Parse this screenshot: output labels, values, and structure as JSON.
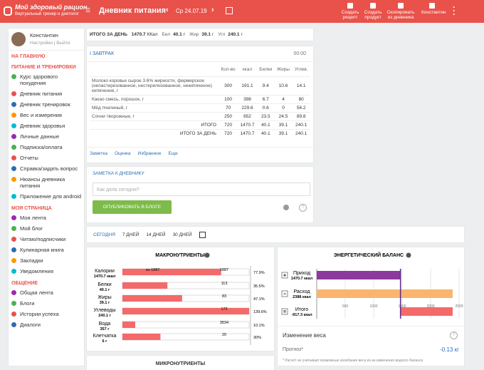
{
  "header": {
    "logo_title": "Мой здоровый рацион",
    "logo_subtitle": "Виртуальный тренер и диетолог",
    "page_title": "Дневник питания",
    "date": "Ср 24.07.19",
    "actions": [
      "Создать рецепт",
      "Создать продукт",
      "Скопировать из дневника",
      "Константин"
    ]
  },
  "sidebar": {
    "user": "Константин",
    "links": [
      "Настройки",
      "Выйти"
    ],
    "sections": [
      {
        "title": "НА ГЛАВНУЮ",
        "items": []
      },
      {
        "title": "ПИТАНИЕ И ТРЕНИРОВКИ",
        "items": [
          "Курс здорового похудения",
          "Дневник питания",
          "Дневник тренировок",
          "Вес и измерения",
          "Дневник здоровья",
          "Личные данные",
          "Подписка/оплата",
          "Отчеты",
          "Справка/задать вопрос",
          "Нюансы дневника питания",
          "Приложение для android"
        ]
      },
      {
        "title": "МОЯ СТРАНИЦА",
        "items": [
          "Моя лента",
          "Мой блог",
          "Читаю/подписчики",
          "Кулинарная книга",
          "Закладки",
          "Уведомления"
        ]
      },
      {
        "title": "ОБЩЕНИЕ",
        "items": [
          "Общая лента",
          "Блоги",
          "Истории успеха",
          "Диалоги"
        ]
      }
    ]
  },
  "summary": {
    "label": "ИТОГО ЗА ДЕНЬ",
    "items": [
      {
        "value": 1470.7,
        "unit": "ККал"
      },
      {
        "name": "Бел",
        "value": 40.1,
        "unit": "г"
      },
      {
        "name": "Жир",
        "value": 39.1,
        "unit": "г"
      },
      {
        "name": "Угл",
        "value": 240.1,
        "unit": "г"
      }
    ]
  },
  "meal": {
    "title": "ЗАВТРАК",
    "time": "00:00",
    "columns": [
      "Кол-во",
      "ккал",
      "Белки",
      "Жиры",
      "Углев."
    ],
    "rows": [
      [
        "Молоко коровье сырое 3.6% жирности, фермерское (непастеризованное, нестерилизованное, некипяченое) кипячение, г",
        300,
        191.1,
        9.4,
        10.6,
        14.1
      ],
      [
        "Какао смесь, порошок, г",
        100,
        398,
        6.7,
        4,
        80
      ],
      [
        "Мёд пчелиный, г",
        70,
        229.6,
        0.6,
        0,
        56.2
      ],
      [
        "Сочни творожные, г",
        250,
        652,
        23.5,
        24.5,
        89.8
      ]
    ],
    "totals": [
      [
        "ИТОГО",
        720,
        1470.7,
        40.1,
        39.1,
        240.1
      ],
      [
        "ИТОГО ЗА ДЕНЬ",
        720,
        1470.7,
        40.1,
        39.1,
        240.1
      ]
    ],
    "links": [
      "Заметка",
      "Оценка",
      "Избранное",
      "Еще"
    ]
  },
  "note": {
    "title": "ЗАМЕТКА К ДНЕВНИКУ",
    "placeholder": "Как дела сегодня?",
    "button": "ОПУБЛИКОВАТЬ В БЛОГЕ"
  },
  "tabs": [
    "СЕГОДНЯ",
    "7 ДНЕЙ",
    "14 ДНЕЙ",
    "30 ДНЕЙ"
  ],
  "macros": {
    "title": "МАКРОНУТРИЕНТЫ",
    "rows": [
      {
        "name": "Калории",
        "amount": "1470.7 ккал",
        "note": "из 1887",
        "target": 1887,
        "percent": 77.9,
        "percent_label": "77.9%"
      },
      {
        "name": "Белки",
        "amount": "40.1 г",
        "target": 113,
        "percent": 35.5,
        "percent_label": "35.5%"
      },
      {
        "name": "Жиры",
        "amount": "39.1 г",
        "target": 83,
        "percent": 47.1,
        "percent_label": "47.1%"
      },
      {
        "name": "Углеводы",
        "amount": "240.1 г",
        "target": 172,
        "percent": 139.6,
        "percent_label": "139.6%"
      },
      {
        "name": "Вода",
        "amount": "357 г",
        "target": 3534,
        "percent": 10.1,
        "percent_label": "10.1%"
      },
      {
        "name": "Клетчатка",
        "amount": "6 г",
        "target": 20,
        "percent": 30,
        "percent_label": "30%"
      }
    ]
  },
  "energy": {
    "type": "bar",
    "title": "ЭНЕРГЕТИЧЕСКИЙ БАЛАНС",
    "rows": [
      {
        "name": "Приход",
        "value": 1470.7,
        "value_label": "1470.7 ккал",
        "color": "#8e3a9d"
      },
      {
        "name": "Расход",
        "value": 2388,
        "value_label": "2388 ккал",
        "color": "#f9b56d"
      },
      {
        "name": "Итого",
        "value": -917.3,
        "value_label": "-917.3 ккал",
        "color": "#f46a6a"
      }
    ],
    "xlim": [
      0,
      2500
    ],
    "xticks": [
      500,
      1000,
      1500,
      2000,
      2500
    ]
  },
  "weight": {
    "title": "Изменение веса",
    "forecast": "Прогноз*",
    "forecast_value": "-0.13 кг",
    "footnote": "* Расчёт не учитывает возможные колебания веса из-за изменения водного баланса"
  },
  "micro": {
    "title": "МИКРОНУТРИЕНТЫ"
  }
}
